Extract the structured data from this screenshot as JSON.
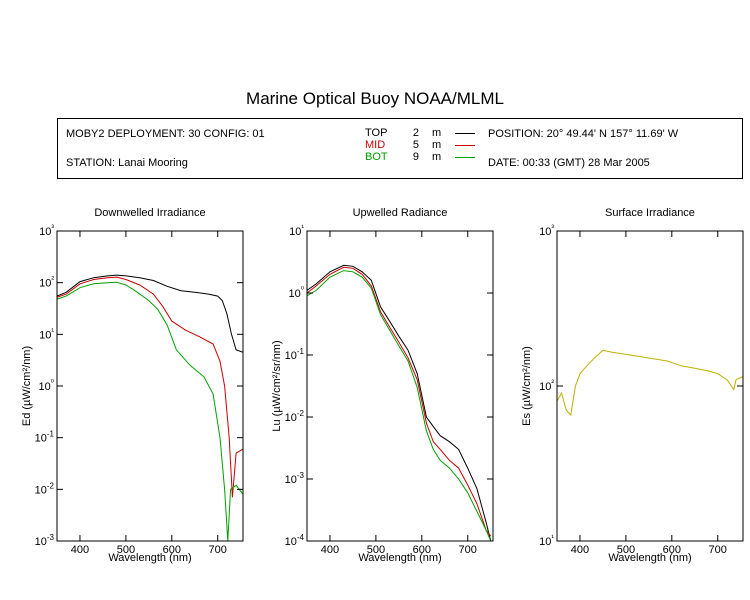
{
  "title": "Marine Optical Buoy NOAA/MLML",
  "header": {
    "deployment": "MOBY2 DEPLOYMENT: 30 CONFIG: 01",
    "station": "STATION: Lanai Mooring",
    "position": "POSITION: 20° 49.44' N   157° 11.69' W",
    "date": "DATE: 00:33 (GMT) 28 Mar 2005",
    "legend": [
      {
        "name": "TOP",
        "depth": "2",
        "unit": "m",
        "color": "#000000"
      },
      {
        "name": "MID",
        "depth": "5",
        "unit": "m",
        "color": "#cc0000"
      },
      {
        "name": "BOT",
        "depth": "9",
        "unit": "m",
        "color": "#00a000"
      }
    ]
  },
  "colors": {
    "top": "#000000",
    "mid": "#cc0000",
    "bot": "#00a000",
    "surface": "#c0b000"
  },
  "chart_data": [
    {
      "type": "line",
      "title": "Downwelled Irradiance",
      "xlabel": "Wavelength (nm)",
      "ylabel": "Ed (µW/cm²/nm)",
      "yscale": "log",
      "xlim": [
        350,
        755
      ],
      "ylim": [
        0.001,
        1000
      ],
      "xticks": [
        400,
        500,
        600,
        700
      ],
      "yticks": [
        "10-3",
        "10-2",
        "10-1",
        "10⁰",
        "10¹",
        "10²",
        "10³"
      ],
      "series": [
        {
          "name": "TOP",
          "color": "#000000",
          "x": [
            350,
            370,
            400,
            430,
            460,
            480,
            500,
            530,
            560,
            590,
            620,
            650,
            680,
            700,
            710,
            720,
            730,
            740,
            755
          ],
          "y": [
            55,
            65,
            105,
            125,
            135,
            140,
            135,
            125,
            110,
            85,
            70,
            65,
            60,
            55,
            45,
            25,
            10,
            5,
            4.5
          ]
        },
        {
          "name": "MID",
          "color": "#cc0000",
          "x": [
            350,
            370,
            400,
            430,
            460,
            480,
            500,
            530,
            560,
            580,
            600,
            630,
            660,
            690,
            705,
            715,
            725,
            732,
            740,
            755
          ],
          "y": [
            52,
            60,
            95,
            115,
            125,
            128,
            115,
            90,
            60,
            35,
            18,
            12,
            9,
            6.5,
            3,
            1,
            0.1,
            0.007,
            0.05,
            0.06
          ]
        },
        {
          "name": "BOT",
          "color": "#00a000",
          "x": [
            350,
            370,
            400,
            430,
            460,
            480,
            500,
            520,
            550,
            570,
            590,
            610,
            640,
            670,
            690,
            705,
            715,
            722,
            728,
            740,
            755
          ],
          "y": [
            48,
            55,
            80,
            95,
            100,
            102,
            90,
            70,
            45,
            30,
            15,
            5,
            2.5,
            1.5,
            0.7,
            0.1,
            0.01,
            0.001,
            0.01,
            0.012,
            0.008
          ]
        }
      ]
    },
    {
      "type": "line",
      "title": "Upwelled Radiance",
      "xlabel": "Wavelength (nm)",
      "ylabel": "Lu (µW/cm²/sr/nm)",
      "yscale": "log",
      "xlim": [
        350,
        755
      ],
      "ylim": [
        0.0001,
        10
      ],
      "xticks": [
        400,
        500,
        600,
        700
      ],
      "yticks": [
        "10-4",
        "10-3",
        "10-2",
        "10-1",
        "10⁰",
        "10¹"
      ],
      "series": [
        {
          "name": "TOP",
          "color": "#000000",
          "x": [
            350,
            370,
            400,
            430,
            450,
            470,
            490,
            510,
            530,
            550,
            570,
            590,
            610,
            625,
            640,
            660,
            680,
            700,
            720,
            740,
            750
          ],
          "y": [
            1.1,
            1.4,
            2.2,
            2.8,
            2.7,
            2.2,
            1.6,
            0.6,
            0.35,
            0.2,
            0.12,
            0.05,
            0.01,
            0.007,
            0.005,
            0.004,
            0.003,
            0.0015,
            0.0007,
            0.0002,
            0.0001
          ]
        },
        {
          "name": "MID",
          "color": "#cc0000",
          "x": [
            350,
            370,
            400,
            430,
            450,
            470,
            490,
            510,
            530,
            550,
            570,
            590,
            610,
            625,
            640,
            660,
            680,
            700,
            720,
            740,
            750
          ],
          "y": [
            1.0,
            1.3,
            2.0,
            2.6,
            2.5,
            2.0,
            1.3,
            0.5,
            0.28,
            0.16,
            0.09,
            0.04,
            0.008,
            0.004,
            0.003,
            0.002,
            0.0015,
            0.0008,
            0.0004,
            0.00015,
            0.00012
          ]
        },
        {
          "name": "BOT",
          "color": "#00a000",
          "x": [
            350,
            370,
            400,
            430,
            450,
            470,
            490,
            510,
            530,
            550,
            570,
            590,
            610,
            625,
            640,
            660,
            680,
            700,
            720,
            740,
            750
          ],
          "y": [
            0.9,
            1.1,
            1.8,
            2.3,
            2.2,
            1.8,
            1.2,
            0.45,
            0.25,
            0.14,
            0.08,
            0.03,
            0.006,
            0.003,
            0.002,
            0.0015,
            0.001,
            0.0006,
            0.0003,
            0.00015,
            0.0001
          ]
        }
      ]
    },
    {
      "type": "line",
      "title": "Surface Irradiance",
      "xlabel": "Wavelength (nm)",
      "ylabel": "Es (µW/cm²/nm)",
      "yscale": "log",
      "xlim": [
        350,
        755
      ],
      "ylim": [
        10,
        1000
      ],
      "xticks": [
        400,
        500,
        600,
        700
      ],
      "yticks": [
        "10¹",
        "10²",
        "10³"
      ],
      "series": [
        {
          "name": "Es",
          "color": "#c0b000",
          "x": [
            350,
            360,
            370,
            380,
            390,
            400,
            410,
            430,
            450,
            470,
            500,
            530,
            560,
            590,
            620,
            650,
            680,
            700,
            720,
            735,
            740,
            755
          ],
          "y": [
            80,
            90,
            70,
            65,
            100,
            120,
            130,
            150,
            170,
            165,
            160,
            155,
            150,
            145,
            135,
            130,
            125,
            120,
            110,
            95,
            110,
            115
          ]
        }
      ]
    }
  ]
}
